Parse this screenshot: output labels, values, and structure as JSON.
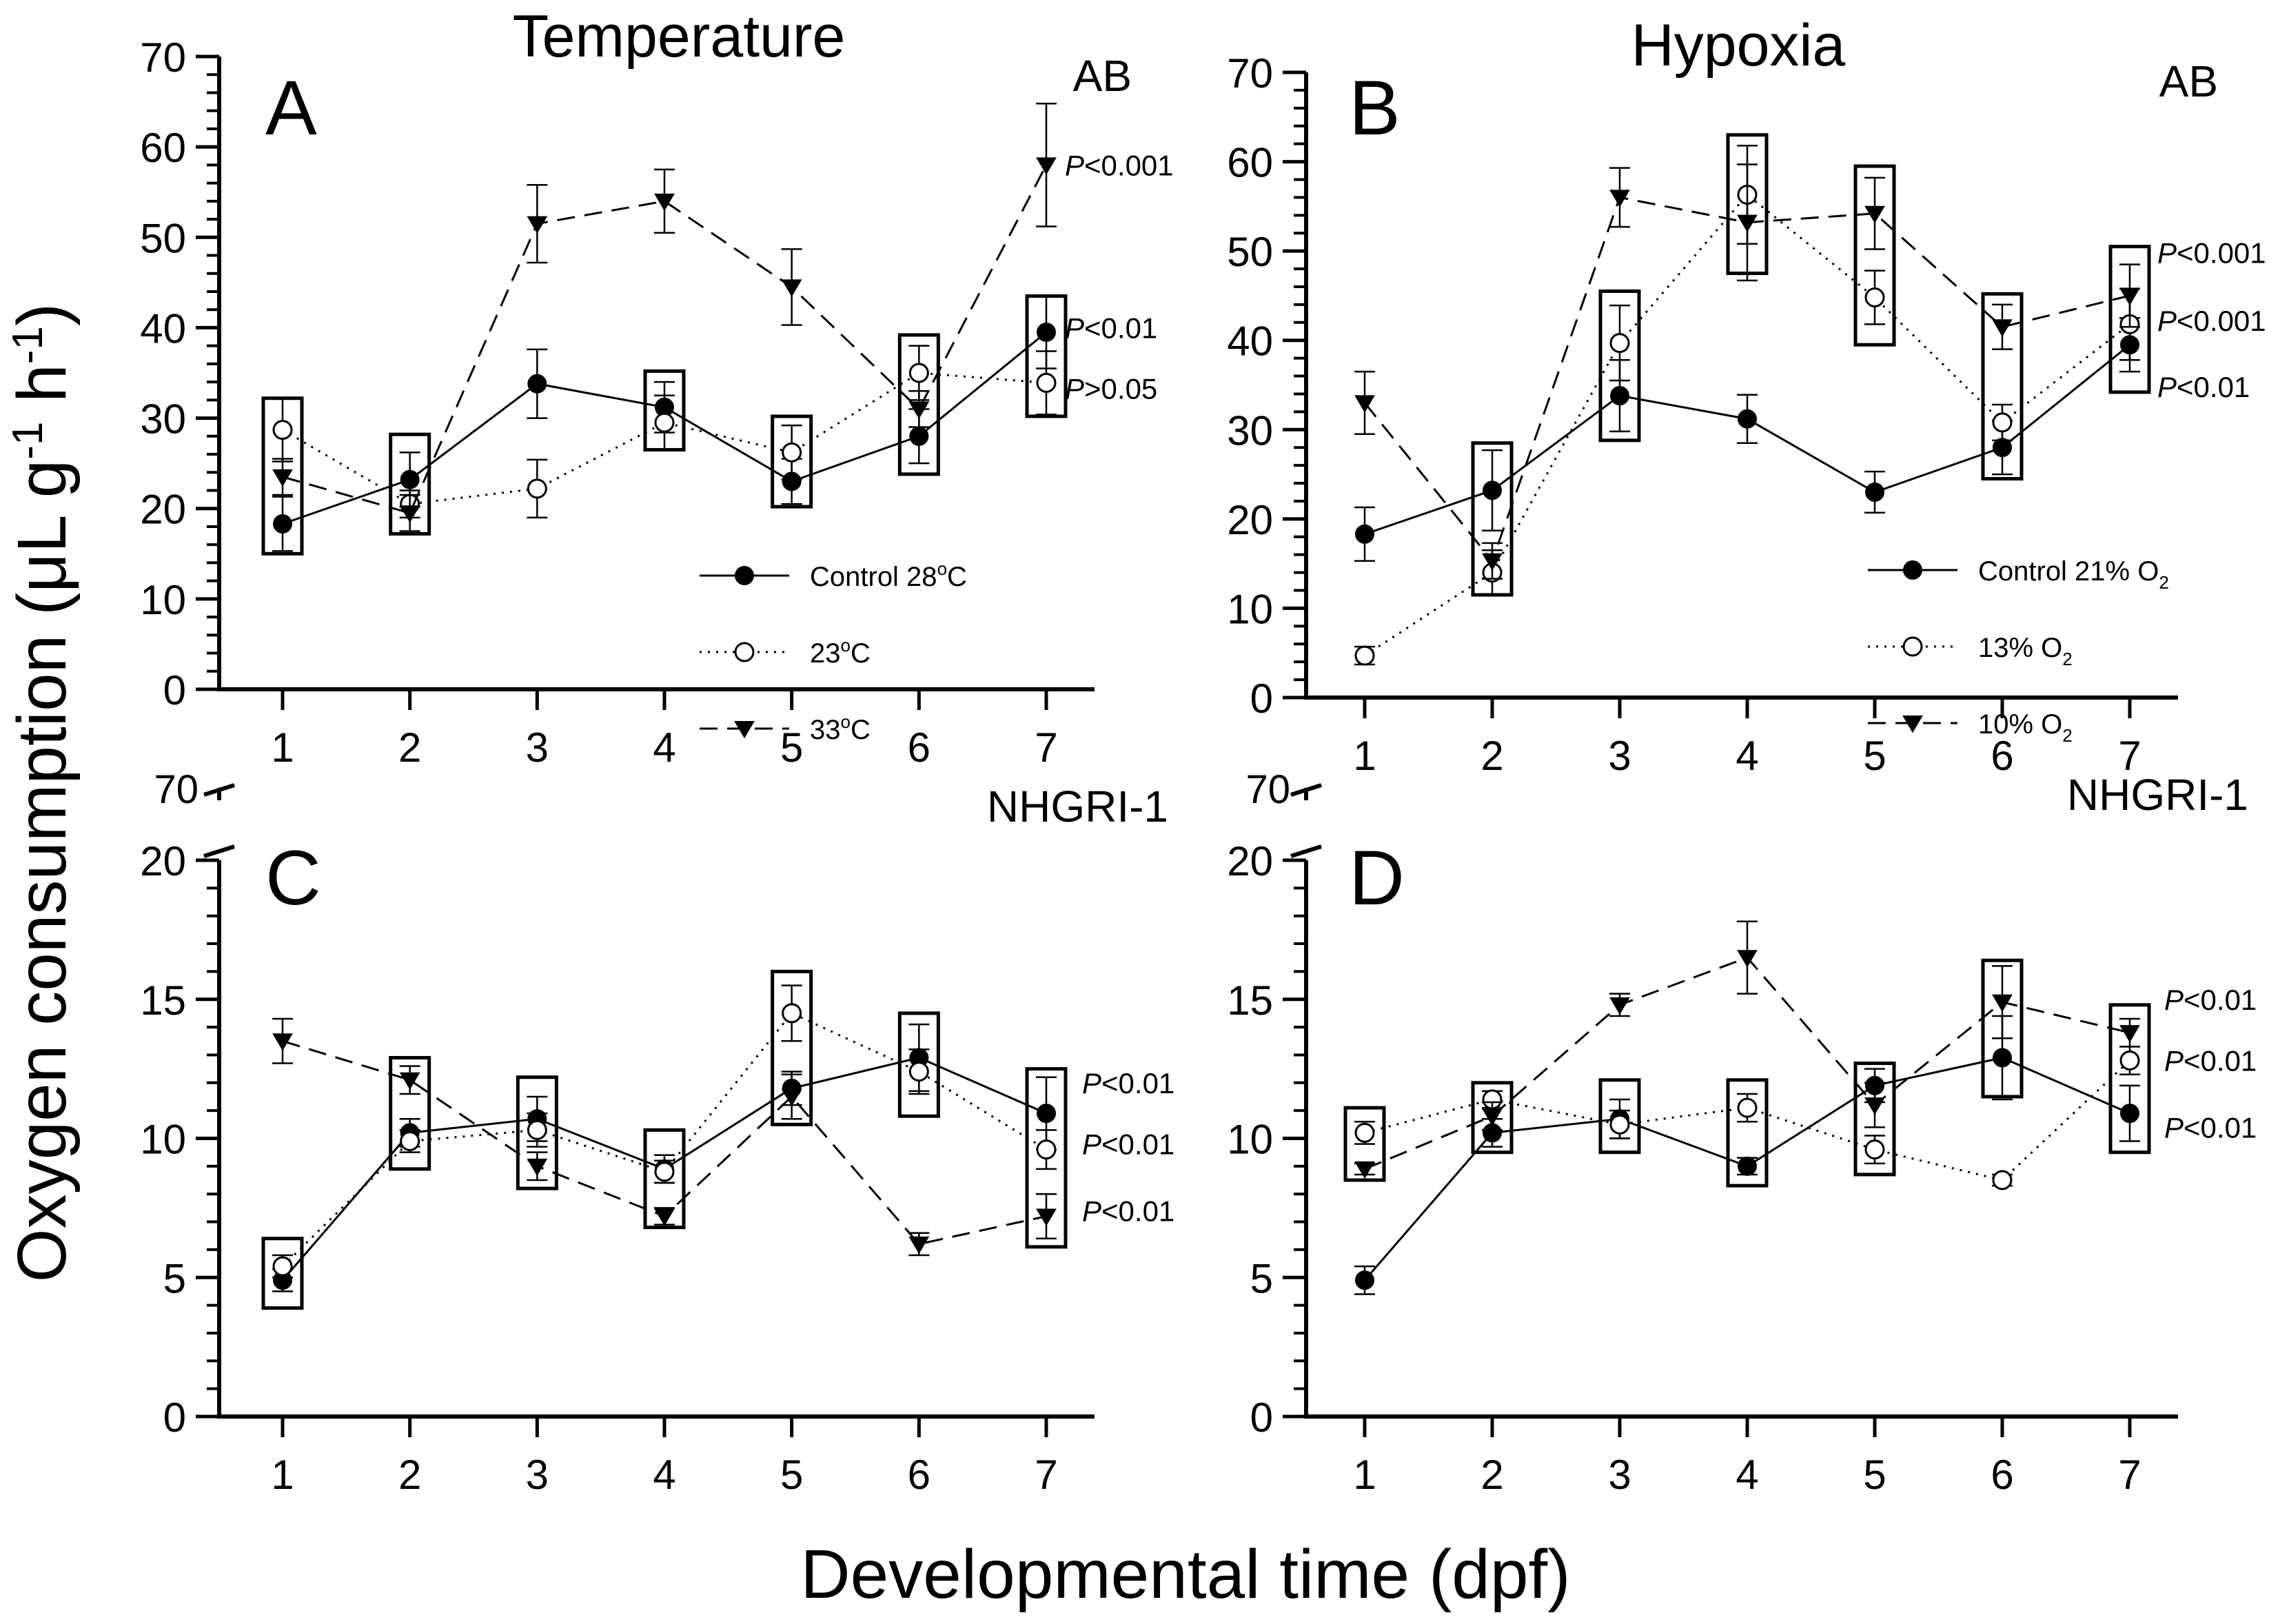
{
  "figure": {
    "ylabel": "Oxygen consumption",
    "ylabel_units_open": "(μL g",
    "ylabel_exp1": "-1",
    "ylabel_units_mid": " h",
    "ylabel_exp2": "-1",
    "ylabel_units_close": ")",
    "xlabel": "Developmental time (dpf)"
  },
  "chart_data": [
    {
      "panel": "A",
      "type": "line",
      "column_title": "Temperature",
      "strain": "AB",
      "x": [
        1,
        2,
        3,
        4,
        5,
        6,
        7
      ],
      "xticks": [
        "1",
        "2",
        "3",
        "4",
        "5",
        "6",
        "7"
      ],
      "ylim": [
        0,
        70
      ],
      "yticks": [
        "0",
        "10",
        "20",
        "30",
        "40",
        "50",
        "60",
        "70"
      ],
      "broken_axis": false,
      "legend_position": "bottom-right",
      "series": [
        {
          "name": "Control 28°C",
          "label_text": "Control 28",
          "label_sup": "o",
          "label_tail": "C",
          "marker": "filled-circle",
          "linestyle": "solid",
          "values": [
            18.3,
            23.2,
            33.8,
            31.2,
            23.0,
            28.0,
            39.5
          ],
          "errors": [
            3.0,
            3.0,
            3.8,
            2.8,
            2.5,
            3.0,
            4.0
          ]
        },
        {
          "name": "23°C",
          "label_text": "23",
          "label_sup": "o",
          "label_tail": "C",
          "marker": "open-circle",
          "linestyle": "dotted",
          "values": [
            28.7,
            20.5,
            22.2,
            29.5,
            26.2,
            35.0,
            33.9
          ],
          "errors": [
            3.5,
            1.5,
            3.2,
            3.0,
            3.0,
            3.0,
            3.5
          ]
        },
        {
          "name": "33°C",
          "label_text": "33",
          "label_sup": "o",
          "label_tail": "C",
          "marker": "filled-triangle-down",
          "linestyle": "dashed",
          "values": [
            23.5,
            19.5,
            51.5,
            54.0,
            44.5,
            31.0,
            58.0
          ],
          "errors": [
            2.0,
            2.0,
            4.3,
            3.5,
            4.2,
            2.0,
            6.8
          ]
        }
      ],
      "boxes": [
        [
          15,
          32.2
        ],
        [
          17.2,
          28.2
        ],
        null,
        [
          26.5,
          35.2
        ],
        [
          20.2,
          30.2
        ],
        [
          23.8,
          39.2
        ],
        [
          30.2,
          43.5
        ]
      ],
      "annotations": [
        {
          "x": 7,
          "y": 58.0,
          "italic": "P",
          "text": "<0.001"
        },
        {
          "x": 7,
          "y": 40.0,
          "italic": "P",
          "text": "<0.01"
        },
        {
          "x": 7,
          "y": 33.3,
          "italic": "P",
          "text": ">0.05"
        }
      ]
    },
    {
      "panel": "B",
      "type": "line",
      "column_title": "Hypoxia",
      "strain": "AB",
      "x": [
        1,
        2,
        3,
        4,
        5,
        6,
        7
      ],
      "xticks": [
        "1",
        "2",
        "3",
        "4",
        "5",
        "6",
        "7"
      ],
      "ylim": [
        0,
        70
      ],
      "yticks": [
        "0",
        "10",
        "20",
        "30",
        "40",
        "50",
        "60",
        "70"
      ],
      "broken_axis": false,
      "legend_position": "bottom-right",
      "series": [
        {
          "name": "Control 21% O2",
          "label_text": "Control 21% O",
          "label_sub": "2",
          "marker": "filled-circle",
          "linestyle": "solid",
          "values": [
            18.3,
            23.2,
            33.8,
            31.2,
            23.0,
            28.0,
            39.5
          ],
          "errors": [
            3.0,
            4.5,
            4.0,
            2.7,
            2.3,
            3.0,
            3.0
          ]
        },
        {
          "name": "13% O2",
          "label_text": "13% O",
          "label_sub": "2",
          "marker": "open-circle",
          "linestyle": "dotted",
          "values": [
            4.7,
            14.0,
            39.7,
            56.3,
            44.8,
            30.8,
            41.8
          ],
          "errors": [
            1.0,
            2.5,
            4.2,
            5.5,
            3.0,
            2.0,
            4.0
          ]
        },
        {
          "name": "10% O2",
          "label_text": "10% O",
          "label_sub": "2",
          "marker": "filled-triangle-down",
          "linestyle": "dashed",
          "values": [
            33.0,
            15.3,
            56.0,
            53.2,
            54.2,
            41.5,
            45.0
          ],
          "errors": [
            3.5,
            2.0,
            3.3,
            6.5,
            4.0,
            2.5,
            3.5
          ]
        }
      ],
      "boxes": [
        null,
        [
          11.5,
          28.5
        ],
        [
          28.8,
          45.5
        ],
        [
          47.5,
          63.0
        ],
        [
          39.5,
          59.5
        ],
        [
          24.5,
          45.2
        ],
        [
          34.2,
          50.5
        ]
      ],
      "annotations": [
        {
          "x": 7,
          "y": 49.8,
          "italic": "P",
          "text": "<0.001"
        },
        {
          "x": 7,
          "y": 42.2,
          "italic": "P",
          "text": "<0.001"
        },
        {
          "x": 7,
          "y": 34.8,
          "italic": "P",
          "text": "<0.01"
        }
      ]
    },
    {
      "panel": "C",
      "type": "line",
      "strain": "NHGRI-1",
      "x": [
        1,
        2,
        3,
        4,
        5,
        6,
        7
      ],
      "xticks": [
        "1",
        "2",
        "3",
        "4",
        "5",
        "6",
        "7"
      ],
      "ylim": [
        0,
        20
      ],
      "yticks": [
        "0",
        "5",
        "10",
        "15",
        "20"
      ],
      "broken_axis": true,
      "broken_axis_label": "70",
      "series": [
        {
          "name": "Control 28°C",
          "marker": "filled-circle",
          "linestyle": "solid",
          "values": [
            4.9,
            10.2,
            10.7,
            8.9,
            11.8,
            12.9,
            10.9
          ],
          "errors": [
            0.4,
            0.5,
            0.8,
            0.5,
            0.6,
            1.2,
            1.3
          ]
        },
        {
          "name": "23°C",
          "marker": "open-circle",
          "linestyle": "dotted",
          "values": [
            5.4,
            9.9,
            10.3,
            8.8,
            14.5,
            12.4,
            9.6
          ],
          "errors": [
            0.4,
            0.4,
            0.6,
            0.4,
            1.0,
            0.8,
            0.7
          ]
        },
        {
          "name": "33°C",
          "marker": "filled-triangle-down",
          "linestyle": "dashed",
          "values": [
            13.5,
            12.1,
            9.0,
            7.2,
            11.5,
            6.2,
            7.2
          ],
          "errors": [
            0.8,
            0.5,
            0.5,
            0.3,
            0.8,
            0.4,
            0.8
          ]
        }
      ],
      "boxes": [
        [
          3.9,
          6.4
        ],
        [
          8.9,
          12.9
        ],
        [
          8.2,
          12.2
        ],
        [
          6.8,
          10.3
        ],
        [
          10.5,
          16.0
        ],
        [
          10.8,
          14.5
        ],
        [
          6.1,
          12.5
        ]
      ],
      "annotations": [
        {
          "x": 7,
          "y": 12.0,
          "italic": "P",
          "text": "<0.01"
        },
        {
          "x": 7,
          "y": 9.8,
          "italic": "P",
          "text": "<0.01"
        },
        {
          "x": 7,
          "y": 7.4,
          "italic": "P",
          "text": "<0.01"
        }
      ]
    },
    {
      "panel": "D",
      "type": "line",
      "strain": "NHGRI-1",
      "x": [
        1,
        2,
        3,
        4,
        5,
        6,
        7
      ],
      "xticks": [
        "1",
        "2",
        "3",
        "4",
        "5",
        "6",
        "7"
      ],
      "ylim": [
        0,
        20
      ],
      "yticks": [
        "0",
        "5",
        "10",
        "15",
        "20"
      ],
      "broken_axis": true,
      "broken_axis_label": "70",
      "series": [
        {
          "name": "Control 21% O2",
          "marker": "filled-circle",
          "linestyle": "solid",
          "values": [
            4.9,
            10.2,
            10.7,
            9.0,
            11.9,
            12.9,
            10.9
          ],
          "errors": [
            0.5,
            0.5,
            0.7,
            0.3,
            0.6,
            1.5,
            1.0
          ]
        },
        {
          "name": "13% O2",
          "marker": "open-circle",
          "linestyle": "dotted",
          "values": [
            10.2,
            11.4,
            10.5,
            11.1,
            9.6,
            8.5,
            12.8
          ],
          "errors": [
            0.4,
            0.3,
            0.5,
            0.5,
            0.5,
            0.2,
            0.5
          ]
        },
        {
          "name": "10% O2",
          "marker": "filled-triangle-down",
          "linestyle": "dashed",
          "values": [
            8.9,
            10.8,
            14.8,
            16.5,
            11.2,
            14.9,
            13.8
          ],
          "errors": [
            0.2,
            0.5,
            0.4,
            1.3,
            0.8,
            1.3,
            0.5
          ]
        }
      ],
      "boxes": [
        [
          8.5,
          11.1
        ],
        [
          9.5,
          12.0
        ],
        [
          9.5,
          12.1
        ],
        [
          8.3,
          12.1
        ],
        [
          8.7,
          12.7
        ],
        [
          11.5,
          16.4
        ],
        [
          9.5,
          14.8
        ]
      ],
      "annotations": [
        {
          "x": 7,
          "y": 15.0,
          "italic": "P",
          "text": "<0.01"
        },
        {
          "x": 7,
          "y": 12.8,
          "italic": "P",
          "text": "<0.01"
        },
        {
          "x": 7,
          "y": 10.4,
          "italic": "P",
          "text": "<0.01"
        }
      ]
    }
  ]
}
